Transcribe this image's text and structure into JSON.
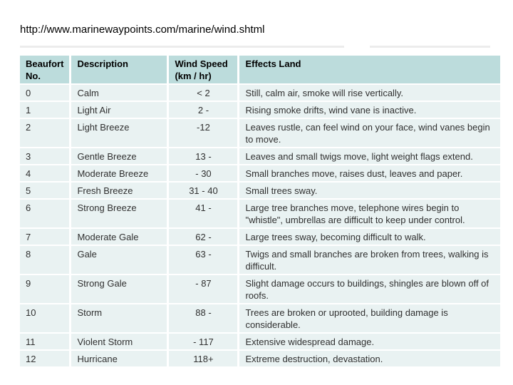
{
  "page": {
    "heading_url": "http://www.marinewaypoints.com/marine/wind.shtml"
  },
  "colors": {
    "header_bg": "#bcdcdc",
    "row_bg": "#e9f2f2",
    "rule": "#ececec",
    "body_text": "#303030",
    "header_text": "#000000"
  },
  "table": {
    "headers": {
      "beaufort_no": "Beaufort\nNo.",
      "description": "Description",
      "wind_speed": "Wind Speed\n(km / hr)",
      "effects_land": "Effects Land"
    },
    "rows": [
      {
        "no": "0",
        "description": "Calm",
        "wind_speed": "< 2",
        "effects_land": "Still, calm air, smoke will rise vertically."
      },
      {
        "no": "1",
        "description": "Light Air",
        "wind_speed": "2 -",
        "effects_land": "Rising smoke drifts, wind vane is inactive."
      },
      {
        "no": "2",
        "description": "Light Breeze",
        "wind_speed": "-12",
        "effects_land": "Leaves rustle, can feel wind on your face, wind vanes begin to move."
      },
      {
        "no": "3",
        "description": "Gentle Breeze",
        "wind_speed": "13 -",
        "effects_land": "Leaves and small twigs move, light weight flags extend."
      },
      {
        "no": "4",
        "description": "Moderate Breeze",
        "wind_speed": "- 30",
        "effects_land": "Small branches move, raises dust, leaves and paper."
      },
      {
        "no": "5",
        "description": "Fresh Breeze",
        "wind_speed": "31 - 40",
        "effects_land": "Small trees sway."
      },
      {
        "no": "6",
        "description": "Strong Breeze",
        "wind_speed": "41 -",
        "effects_land": "Large tree branches move,  telephone wires begin to \"whistle\", umbrellas are difficult to keep under control."
      },
      {
        "no": "7",
        "description": "Moderate Gale",
        "wind_speed": "62 -",
        "effects_land": "Large trees sway, becoming difficult to walk."
      },
      {
        "no": "8",
        "description": "Gale",
        "wind_speed": "63 -",
        "effects_land": "Twigs and small branches are broken from trees, walking is difficult."
      },
      {
        "no": "9",
        "description": "Strong Gale",
        "wind_speed": "- 87",
        "effects_land": "Slight damage occurs to buildings, shingles are blown off of roofs."
      },
      {
        "no": "10",
        "description": "Storm",
        "wind_speed": "88 -",
        "effects_land": "Trees are broken or uprooted, building damage is considerable."
      },
      {
        "no": "11",
        "description": "Violent Storm",
        "wind_speed": "- 117",
        "effects_land": "Extensive widespread damage."
      },
      {
        "no": "12",
        "description": "Hurricane",
        "wind_speed": "118+",
        "effects_land": "Extreme destruction, devastation."
      }
    ]
  }
}
